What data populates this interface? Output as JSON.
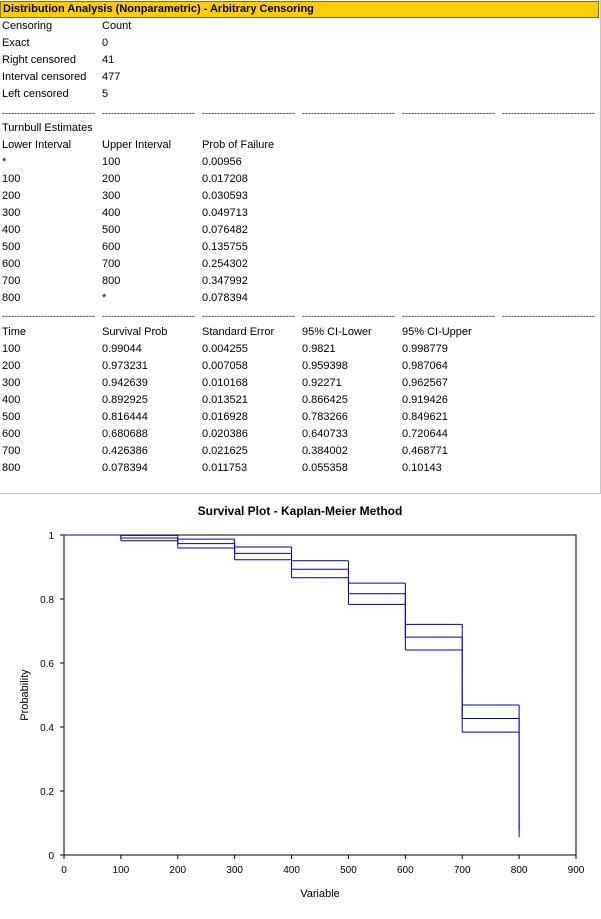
{
  "report": {
    "title": "Distribution Analysis (Nonparametric) - Arbitrary Censoring",
    "censoring": {
      "headers": [
        "Censoring",
        "Count"
      ],
      "rows": [
        [
          "Exact",
          "0"
        ],
        [
          "Right censored",
          "41"
        ],
        [
          "Interval censored",
          "477"
        ],
        [
          "Left censored",
          "5"
        ]
      ]
    },
    "separator": "-------------------------------",
    "turnbull": {
      "caption": "Turnbull Estimates",
      "headers": [
        "Lower Interval",
        "Upper Interval",
        "Prob of Failure"
      ],
      "rows": [
        [
          "*",
          "100",
          "0.00956"
        ],
        [
          "100",
          "200",
          "0.017208"
        ],
        [
          "200",
          "300",
          "0.030593"
        ],
        [
          "300",
          "400",
          "0.049713"
        ],
        [
          "400",
          "500",
          "0.076482"
        ],
        [
          "500",
          "600",
          "0.135755"
        ],
        [
          "600",
          "700",
          "0.254302"
        ],
        [
          "700",
          "800",
          "0.347992"
        ],
        [
          "800",
          "*",
          "0.078394"
        ]
      ]
    },
    "survival": {
      "headers": [
        "Time",
        "Survival Prob",
        "Standard Error",
        "95% CI-Lower",
        "95% CI-Upper"
      ],
      "rows": [
        [
          "100",
          "0.99044",
          "0.004255",
          "0.9821",
          "0.998779"
        ],
        [
          "200",
          "0.973231",
          "0.007058",
          "0.959398",
          "0.987064"
        ],
        [
          "300",
          "0.942639",
          "0.010168",
          "0.92271",
          "0.962567"
        ],
        [
          "400",
          "0.892925",
          "0.013521",
          "0.866425",
          "0.919426"
        ],
        [
          "500",
          "0.816444",
          "0.016928",
          "0.783266",
          "0.849621"
        ],
        [
          "600",
          "0.680688",
          "0.020386",
          "0.640733",
          "0.720644"
        ],
        [
          "700",
          "0.426386",
          "0.021625",
          "0.384002",
          "0.468771"
        ],
        [
          "800",
          "0.078394",
          "0.011753",
          "0.055358",
          "0.10143"
        ]
      ]
    }
  },
  "chart_data": {
    "type": "line",
    "title": "Survival Plot  - Kaplan-Meier  Method",
    "xlabel": "Variable",
    "ylabel": "Probability",
    "xlim": [
      0,
      900
    ],
    "ylim": [
      0,
      1
    ],
    "x_ticks": [
      0,
      100,
      200,
      300,
      400,
      500,
      600,
      700,
      800,
      900
    ],
    "y_ticks": [
      0,
      0.2,
      0.4,
      0.6,
      0.8,
      1
    ],
    "grid": false,
    "legend": "none",
    "line_color": "#0000aa",
    "start": {
      "x": 0,
      "y": 1
    },
    "steps": {
      "time": [
        100,
        200,
        300,
        400,
        500,
        600,
        700,
        800
      ],
      "survival": [
        0.99044,
        0.973231,
        0.942639,
        0.892925,
        0.816444,
        0.680688,
        0.426386,
        0.078394
      ],
      "ci_lower": [
        0.9821,
        0.959398,
        0.92271,
        0.866425,
        0.783266,
        0.640733,
        0.384002,
        0.055358
      ],
      "ci_upper": [
        0.998779,
        0.987064,
        0.962567,
        0.919426,
        0.849621,
        0.720644,
        0.468771,
        0.10143
      ]
    }
  }
}
